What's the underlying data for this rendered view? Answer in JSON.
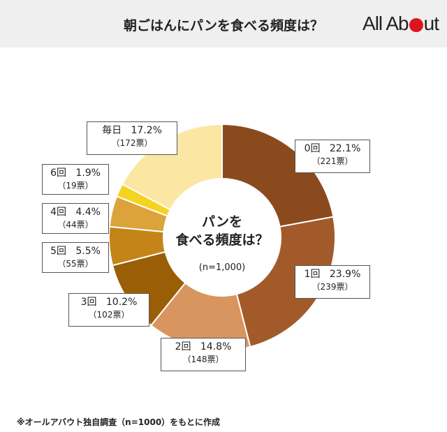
{
  "header": {
    "title": "朝ごはんにパンを食べる頻度は？"
  },
  "logo": {
    "text_before": "All Ab",
    "text_after": "ut"
  },
  "colors": {
    "header_bg": "#efefef",
    "logo_accent": "#e0141e"
  },
  "chart_data": {
    "type": "pie",
    "donut": true,
    "title": "朝ごはんにパンを食べる頻度は？",
    "center_title_line1": "パンを",
    "center_title_line2": "食べる頻度は？",
    "center_note": "(n=1,000)",
    "start_angle_deg": 0,
    "slices": [
      {
        "label": "0回",
        "percent": 22.1,
        "percent_text": "22.1%",
        "votes": 221,
        "votes_text": "（221票）",
        "color": "#8a4a1e"
      },
      {
        "label": "1回",
        "percent": 23.9,
        "percent_text": "23.9%",
        "votes": 239,
        "votes_text": "（239票）",
        "color": "#a35a2a"
      },
      {
        "label": "2回",
        "percent": 14.8,
        "percent_text": "14.8%",
        "votes": 148,
        "votes_text": "（148票）",
        "color": "#d9955f"
      },
      {
        "label": "3回",
        "percent": 10.2,
        "percent_text": "10.2%",
        "votes": 102,
        "votes_text": "（102票）",
        "color": "#9a5e06"
      },
      {
        "label": "5回",
        "percent": 5.5,
        "percent_text": "5.5%",
        "votes": 55,
        "votes_text": "（55票）",
        "color": "#c48418"
      },
      {
        "label": "4回",
        "percent": 4.4,
        "percent_text": "4.4%",
        "votes": 44,
        "votes_text": "（44票）",
        "color": "#dca33a"
      },
      {
        "label": "6回",
        "percent": 1.9,
        "percent_text": "1.9%",
        "votes": 19,
        "votes_text": "（19票）",
        "color": "#f5d321"
      },
      {
        "label": "毎日",
        "percent": 17.2,
        "percent_text": "17.2%",
        "votes": 172,
        "votes_text": "（172票）",
        "color": "#fbe7a3"
      }
    ]
  },
  "footnote": "※オールアバウト独自調査（n=1000）をもとに作成"
}
